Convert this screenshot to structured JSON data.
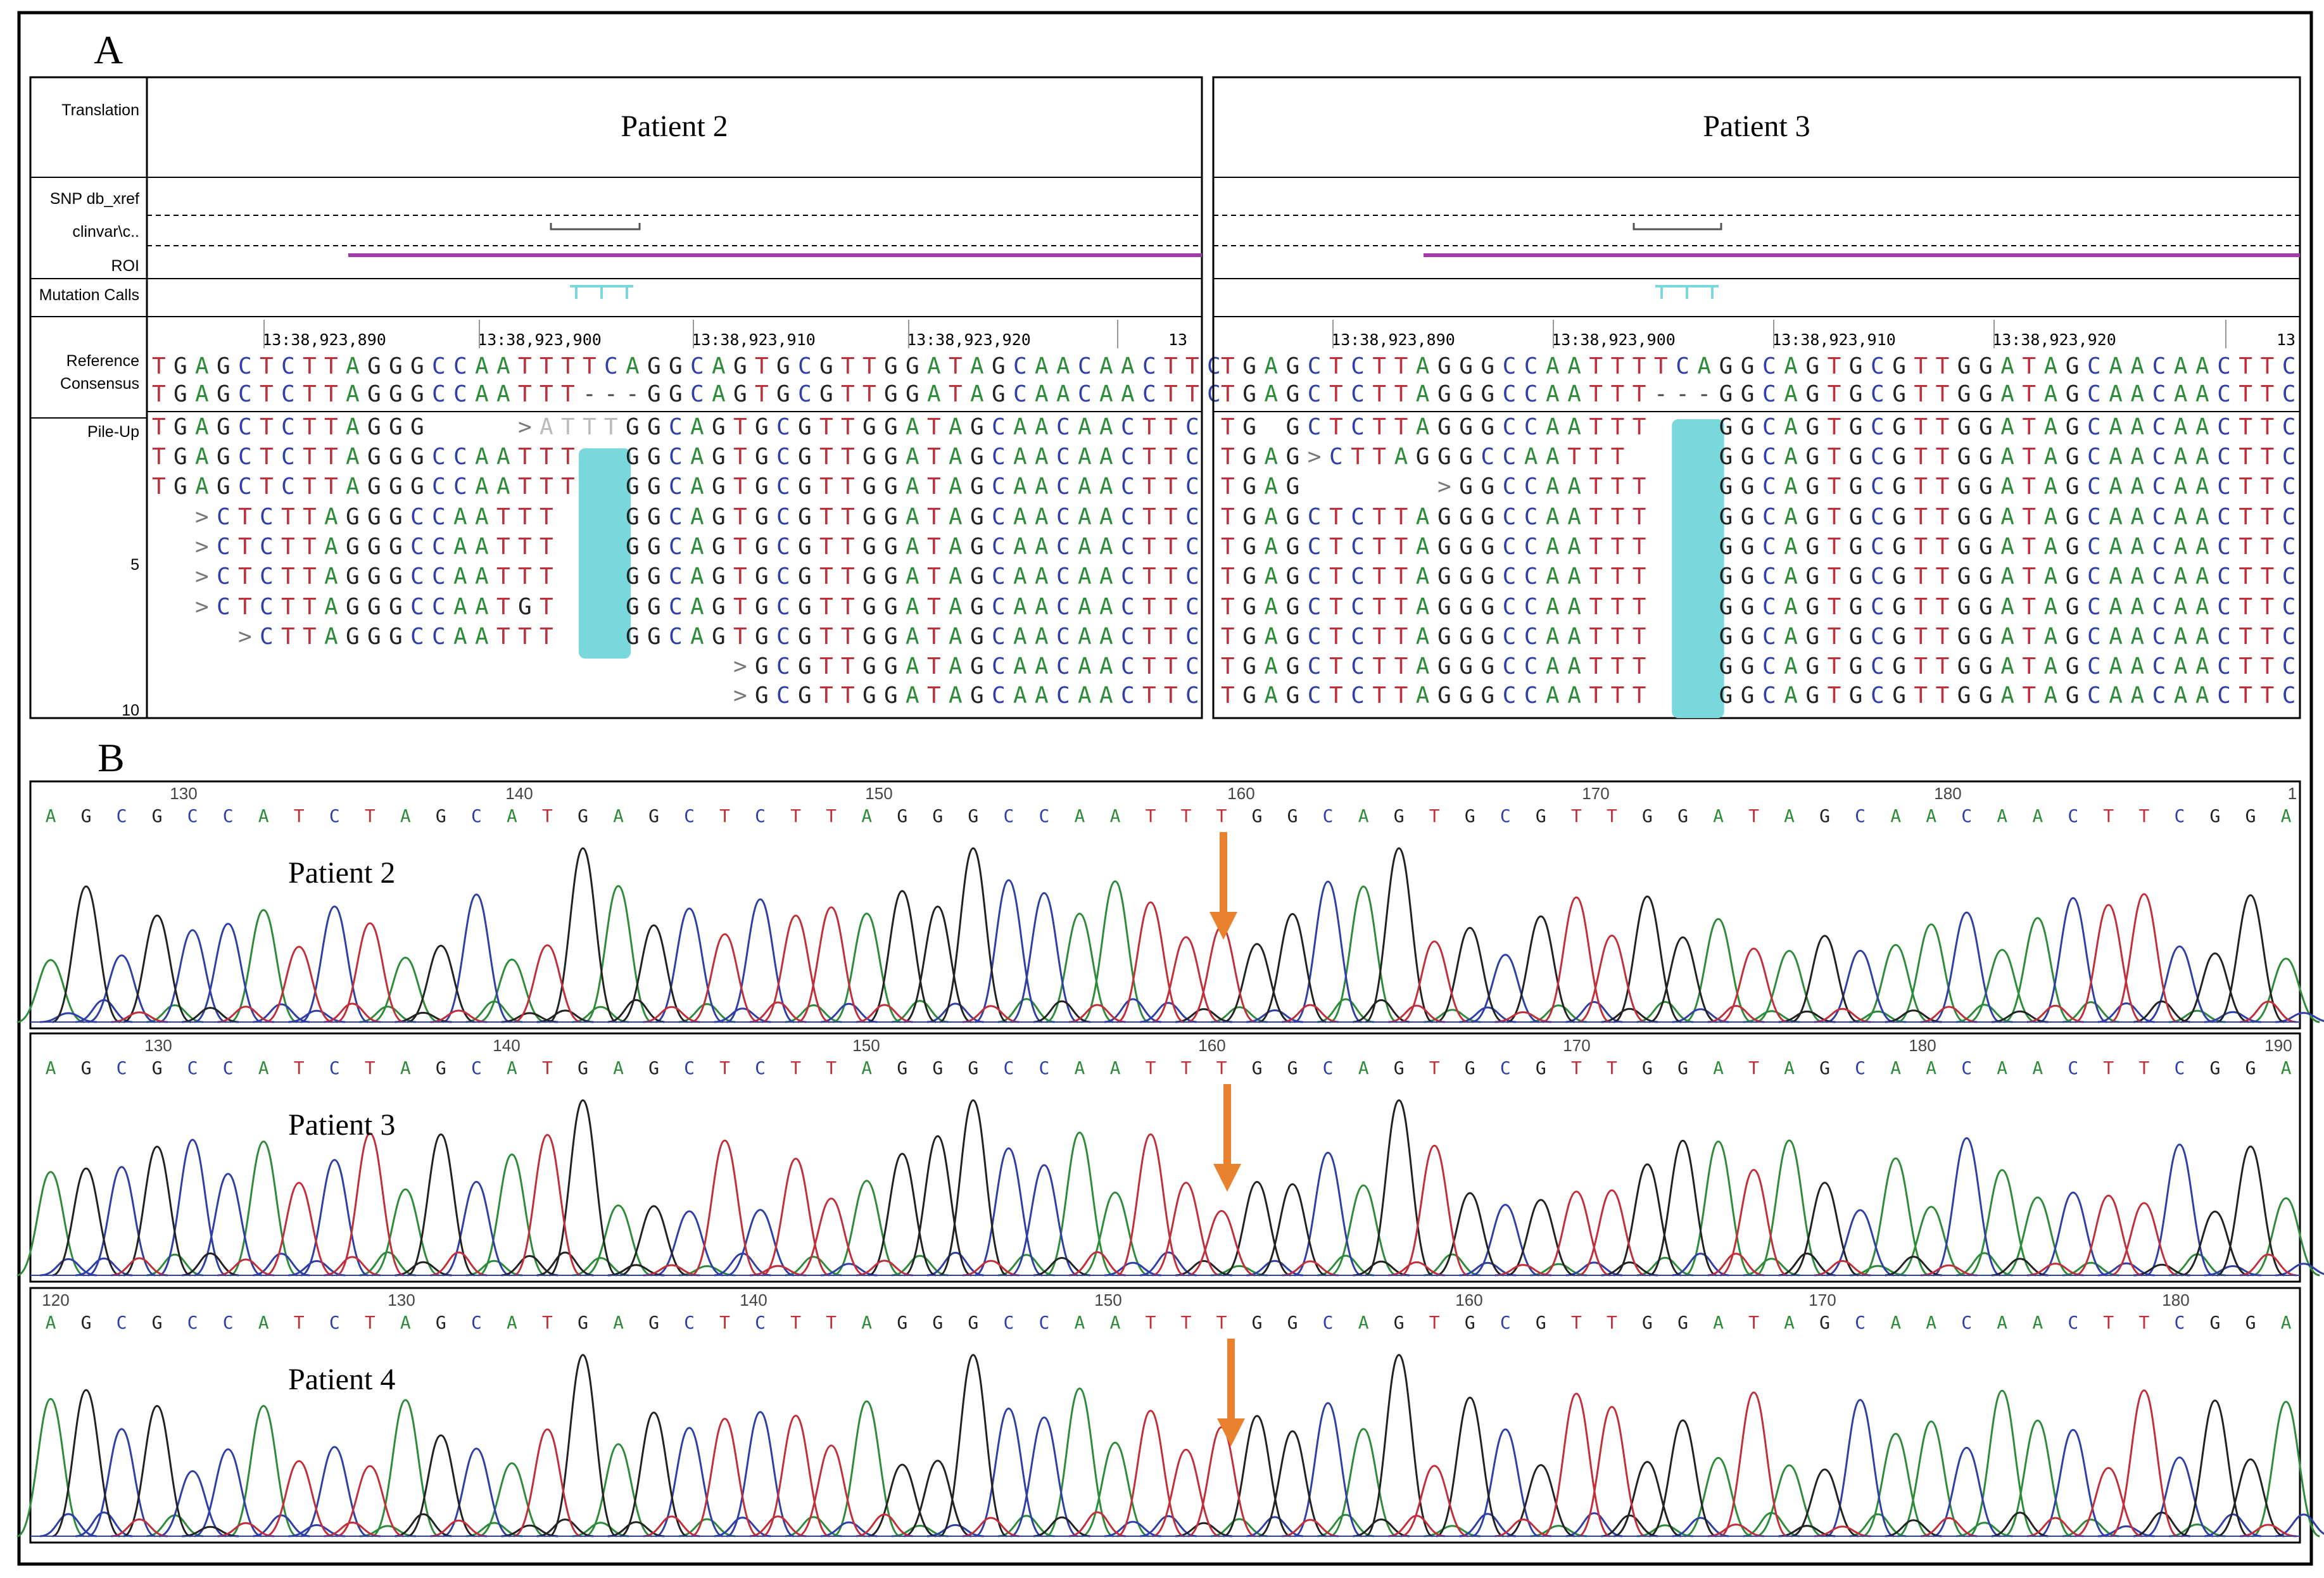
{
  "panel_a": {
    "letter": "A",
    "track_labels": {
      "translation": "Translation",
      "snp": "SNP db_xref",
      "clinvar": "clinvar\\c..",
      "roi": "ROI",
      "mutation_calls": "Mutation Calls",
      "reference": "Reference",
      "consensus": "Consensus",
      "pileup": "Pile-Up",
      "row5": "5",
      "row10": "10"
    },
    "patients": [
      {
        "title": "Patient 2",
        "coords": [
          "13:38,923,890",
          "13:38,923,900",
          "13:38,923,910",
          "13:38,923,920",
          "13"
        ],
        "reference": "TGAGCTCTTAGGGCCAATTTTCAGGCAGTGCGTTGGATAGCAACAACTTC",
        "consensus": "TGAGCTCTTAGGGCCAATTT---GGCAGTGCGTTGGATAGCAACAACTTC",
        "reads": [
          {
            "start": 0,
            "seq": "TGAGCTCTTAGGG"
          },
          {
            "start": 18,
            "seq": "ATTT",
            "faded": true,
            "marker": true
          },
          {
            "start": 22,
            "seq": "GGCAGTGCGTTGGATAGCAACAACTTC"
          },
          {
            "start": 0,
            "seq": "TGAGCTCTTAGGGCCAATTT"
          },
          {
            "start": 22,
            "seq": "GGCAGTGCGTTGGATAGCAACAACTTC"
          },
          {
            "start": 0,
            "seq": "TGAGCTCTTAGGGCCAATTT"
          },
          {
            "start": 22,
            "seq": "GGCAGTGCGTTGGATAGCAACAACTTC"
          },
          {
            "start": 3,
            "seq": "CTCTTAGGGCCAATTT",
            "marker": true
          },
          {
            "start": 22,
            "seq": "GGCAGTGCGTTGGATAGCAACAACTTC"
          },
          {
            "start": 3,
            "seq": "CTCTTAGGGCCAATTT",
            "marker": true
          },
          {
            "start": 22,
            "seq": "GGCAGTGCGTTGGATAGCAACAACTTC"
          },
          {
            "start": 3,
            "seq": "CTCTTAGGGCCAATTT",
            "marker": true
          },
          {
            "start": 22,
            "seq": "GGCAGTGCGTTGGATAGCAACAACTTC"
          },
          {
            "start": 3,
            "seq": "CTCTTAGGGCCAATGT",
            "marker": true
          },
          {
            "start": 22,
            "seq": "GGCAGTGCGTTGGATAGCAACAACTTC"
          },
          {
            "start": 5,
            "seq": "CTTAGGGCCAATTT",
            "marker": true
          },
          {
            "start": 22,
            "seq": "GGCAGTGCGTTGGATAGCAACAACTTC"
          },
          {
            "start": 28,
            "seq": "GCGTTGGATAGCAACAACTTC",
            "marker": true
          },
          {
            "start": 28,
            "seq": "GCGTTGGATAGCAACAACTTC",
            "marker": true
          }
        ],
        "read_rows": [
          0,
          0,
          0,
          1,
          1,
          2,
          2,
          3,
          3,
          4,
          4,
          5,
          5,
          6,
          6,
          7,
          7,
          8,
          9
        ]
      },
      {
        "title": "Patient 3",
        "coords": [
          "13:38,923,890",
          "13:38,923,900",
          "13:38,923,910",
          "13:38,923,920",
          "13"
        ],
        "reference": "TGAGCTCTTAGGGCCAATTTTCAGGCAGTGCGTTGGATAGCAACAACTTC",
        "consensus": "TGAGCTCTTAGGGCCAATTT---GGCAGTGCGTTGGATAGCAACAACTTC",
        "reads": [
          {
            "start": 0,
            "seq": "TG"
          },
          {
            "start": 3,
            "seq": "GCTCTTAGGGCCAATTT"
          },
          {
            "start": 23,
            "seq": "GGCAGTGCGTTGGATAGCAACAACTTC"
          },
          {
            "start": 0,
            "seq": "TGAG"
          },
          {
            "start": 5,
            "seq": "CTTAGGGCCAATTT",
            "marker": true
          },
          {
            "start": 23,
            "seq": "GGCAGTGCGTTGGATAGCAACAACTTC"
          },
          {
            "start": 0,
            "seq": "TGAG"
          },
          {
            "start": 11,
            "seq": "GGCCAATTT",
            "marker": true
          },
          {
            "start": 23,
            "seq": "GGCAGTGCGTTGGATAGCAACAACTTC"
          },
          {
            "start": 0,
            "seq": "TGAGCTCTTAGGGCCAATTT"
          },
          {
            "start": 23,
            "seq": "GGCAGTGCGTTGGATAGCAACAACTTC"
          },
          {
            "start": 0,
            "seq": "TGAGCTCTTAGGGCCAATTT"
          },
          {
            "start": 23,
            "seq": "GGCAGTGCGTTGGATAGCAACAACTTC"
          },
          {
            "start": 0,
            "seq": "TGAGCTCTTAGGGCCAATTT"
          },
          {
            "start": 23,
            "seq": "GGCAGTGCGTTGGATAGCAACAACTTC"
          },
          {
            "start": 0,
            "seq": "TGAGCTCTTAGGGCCAATTT"
          },
          {
            "start": 23,
            "seq": "GGCAGTGCGTTGGATAGCAACAACTTC"
          },
          {
            "start": 0,
            "seq": "TGAGCTCTTAGGGCCAATTT"
          },
          {
            "start": 23,
            "seq": "GGCAGTGCGTTGGATAGCAACAACTTC"
          },
          {
            "start": 0,
            "seq": "TGAGCTCTTAGGGCCAATTT"
          },
          {
            "start": 23,
            "seq": "GGCAGTGCGTTGGATAGCAACAACTTC"
          },
          {
            "start": 0,
            "seq": "TGAGCTCTTAGGGCCAATTT"
          },
          {
            "start": 23,
            "seq": "GGCAGTGCGTTGGATAGCAACAACTTC"
          }
        ],
        "read_rows": [
          0,
          0,
          0,
          1,
          1,
          1,
          2,
          2,
          2,
          3,
          3,
          4,
          4,
          5,
          5,
          6,
          6,
          7,
          7,
          8,
          8,
          9,
          9
        ]
      }
    ]
  },
  "panel_b": {
    "letter": "B",
    "tracks": [
      {
        "label": "Patient 2",
        "scale": [
          "130",
          "140",
          "150",
          "160",
          "170",
          "180",
          "1"
        ],
        "bases": "AGCGCCATCTAGCATGAGCTCTTAGGGCCAATTTGGCAGTGCGTTGGATAGCAACAACTTCGGA"
      },
      {
        "label": "Patient 3",
        "scale": [
          "130",
          "140",
          "150",
          "160",
          "170",
          "180",
          "190"
        ],
        "bases": "AGCGCCATCTAGCATGAGCTCTTAGGGCCAATTTGGCAGTGCGTTGGATAGCAACAACTTCGGA"
      },
      {
        "label": "Patient 4",
        "scale": [
          "120",
          "130",
          "140",
          "150",
          "160",
          "170",
          "180"
        ],
        "bases": "AGCGCCATCTAGCATGAGCTCTTAGGGCCAATTTGGCAGTGCGTTGGATAGCAACAACTTCGGA"
      }
    ]
  },
  "colors": {
    "A": "#2e8b3a",
    "C": "#2f3fa5",
    "G": "#222222",
    "T": "#c0303a",
    "deletion": "#79d8dc",
    "roi": "#a13ba8",
    "arrow": "#e8822e"
  }
}
